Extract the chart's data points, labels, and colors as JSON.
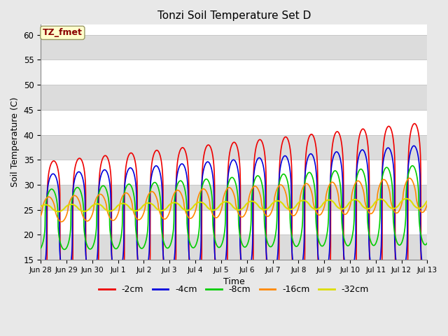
{
  "title": "Tonzi Soil Temperature Set D",
  "xlabel": "Time",
  "ylabel": "Soil Temperature (C)",
  "ylim": [
    15,
    62
  ],
  "yticks": [
    15,
    20,
    25,
    30,
    35,
    40,
    45,
    50,
    55,
    60
  ],
  "annotation_text": "TZ_fmet",
  "annotation_color": "#8B0000",
  "annotation_bg": "#FFFFCC",
  "fig_bg": "#E8E8E8",
  "plot_bg": "#FFFFFF",
  "band_color": "#DCDCDC",
  "grid_color": "#C8C8C8",
  "series": [
    {
      "label": "-2cm",
      "color": "#EE0000",
      "lw": 1.2
    },
    {
      "label": "-4cm",
      "color": "#0000DD",
      "lw": 1.2
    },
    {
      "label": "-8cm",
      "color": "#00CC00",
      "lw": 1.2
    },
    {
      "label": "-16cm",
      "color": "#FF8800",
      "lw": 1.2
    },
    {
      "label": "-32cm",
      "color": "#DDDD00",
      "lw": 1.5
    }
  ],
  "n_days": 15,
  "ppd": 240,
  "tick_labels": [
    "Jun 28",
    "Jun 29",
    "Jun 30",
    "Jul 1",
    "Jul 2",
    "Jul 3",
    "Jul 4",
    "Jul 5",
    "Jul 6",
    "Jul 7",
    "Jul 8",
    "Jul 9",
    "Jul 10",
    "Jul 11",
    "Jul 12",
    "Jul 13"
  ]
}
